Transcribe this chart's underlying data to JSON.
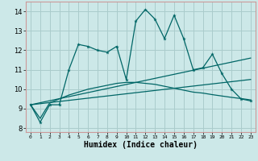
{
  "xlabel": "Humidex (Indice chaleur)",
  "xlim": [
    -0.5,
    23.5
  ],
  "ylim": [
    7.8,
    14.5
  ],
  "yticks": [
    8,
    9,
    10,
    11,
    12,
    13,
    14
  ],
  "xticks": [
    0,
    1,
    2,
    3,
    4,
    5,
    6,
    7,
    8,
    9,
    10,
    11,
    12,
    13,
    14,
    15,
    16,
    17,
    18,
    19,
    20,
    21,
    22,
    23
  ],
  "bg_color": "#cce8e8",
  "grid_color": "#aacccc",
  "line_color": "#006666",
  "line1_x": [
    0,
    1,
    2,
    3,
    4,
    5,
    6,
    7,
    8,
    9,
    10,
    11,
    12,
    13,
    14,
    15,
    16,
    17,
    18,
    19,
    20,
    21,
    22,
    23
  ],
  "line1_y": [
    9.2,
    8.3,
    9.2,
    9.2,
    11.0,
    12.3,
    12.2,
    12.0,
    11.9,
    12.2,
    10.5,
    13.5,
    14.1,
    13.6,
    12.6,
    13.8,
    12.6,
    11.0,
    11.1,
    11.8,
    10.8,
    10.0,
    9.5,
    9.4
  ],
  "line2_x": [
    0,
    1,
    2,
    3,
    4,
    5,
    6,
    7,
    8,
    9,
    10,
    11,
    12,
    13,
    14,
    15,
    16,
    17,
    18,
    19,
    20,
    21,
    22,
    23
  ],
  "line2_y": [
    9.2,
    8.5,
    9.3,
    9.5,
    9.7,
    9.85,
    10.0,
    10.1,
    10.2,
    10.3,
    10.35,
    10.35,
    10.3,
    10.25,
    10.15,
    10.05,
    9.95,
    9.85,
    9.8,
    9.72,
    9.65,
    9.58,
    9.52,
    9.45
  ],
  "line3_x": [
    0,
    23
  ],
  "line3_y": [
    9.2,
    11.6
  ],
  "line4_x": [
    0,
    23
  ],
  "line4_y": [
    9.2,
    10.5
  ]
}
